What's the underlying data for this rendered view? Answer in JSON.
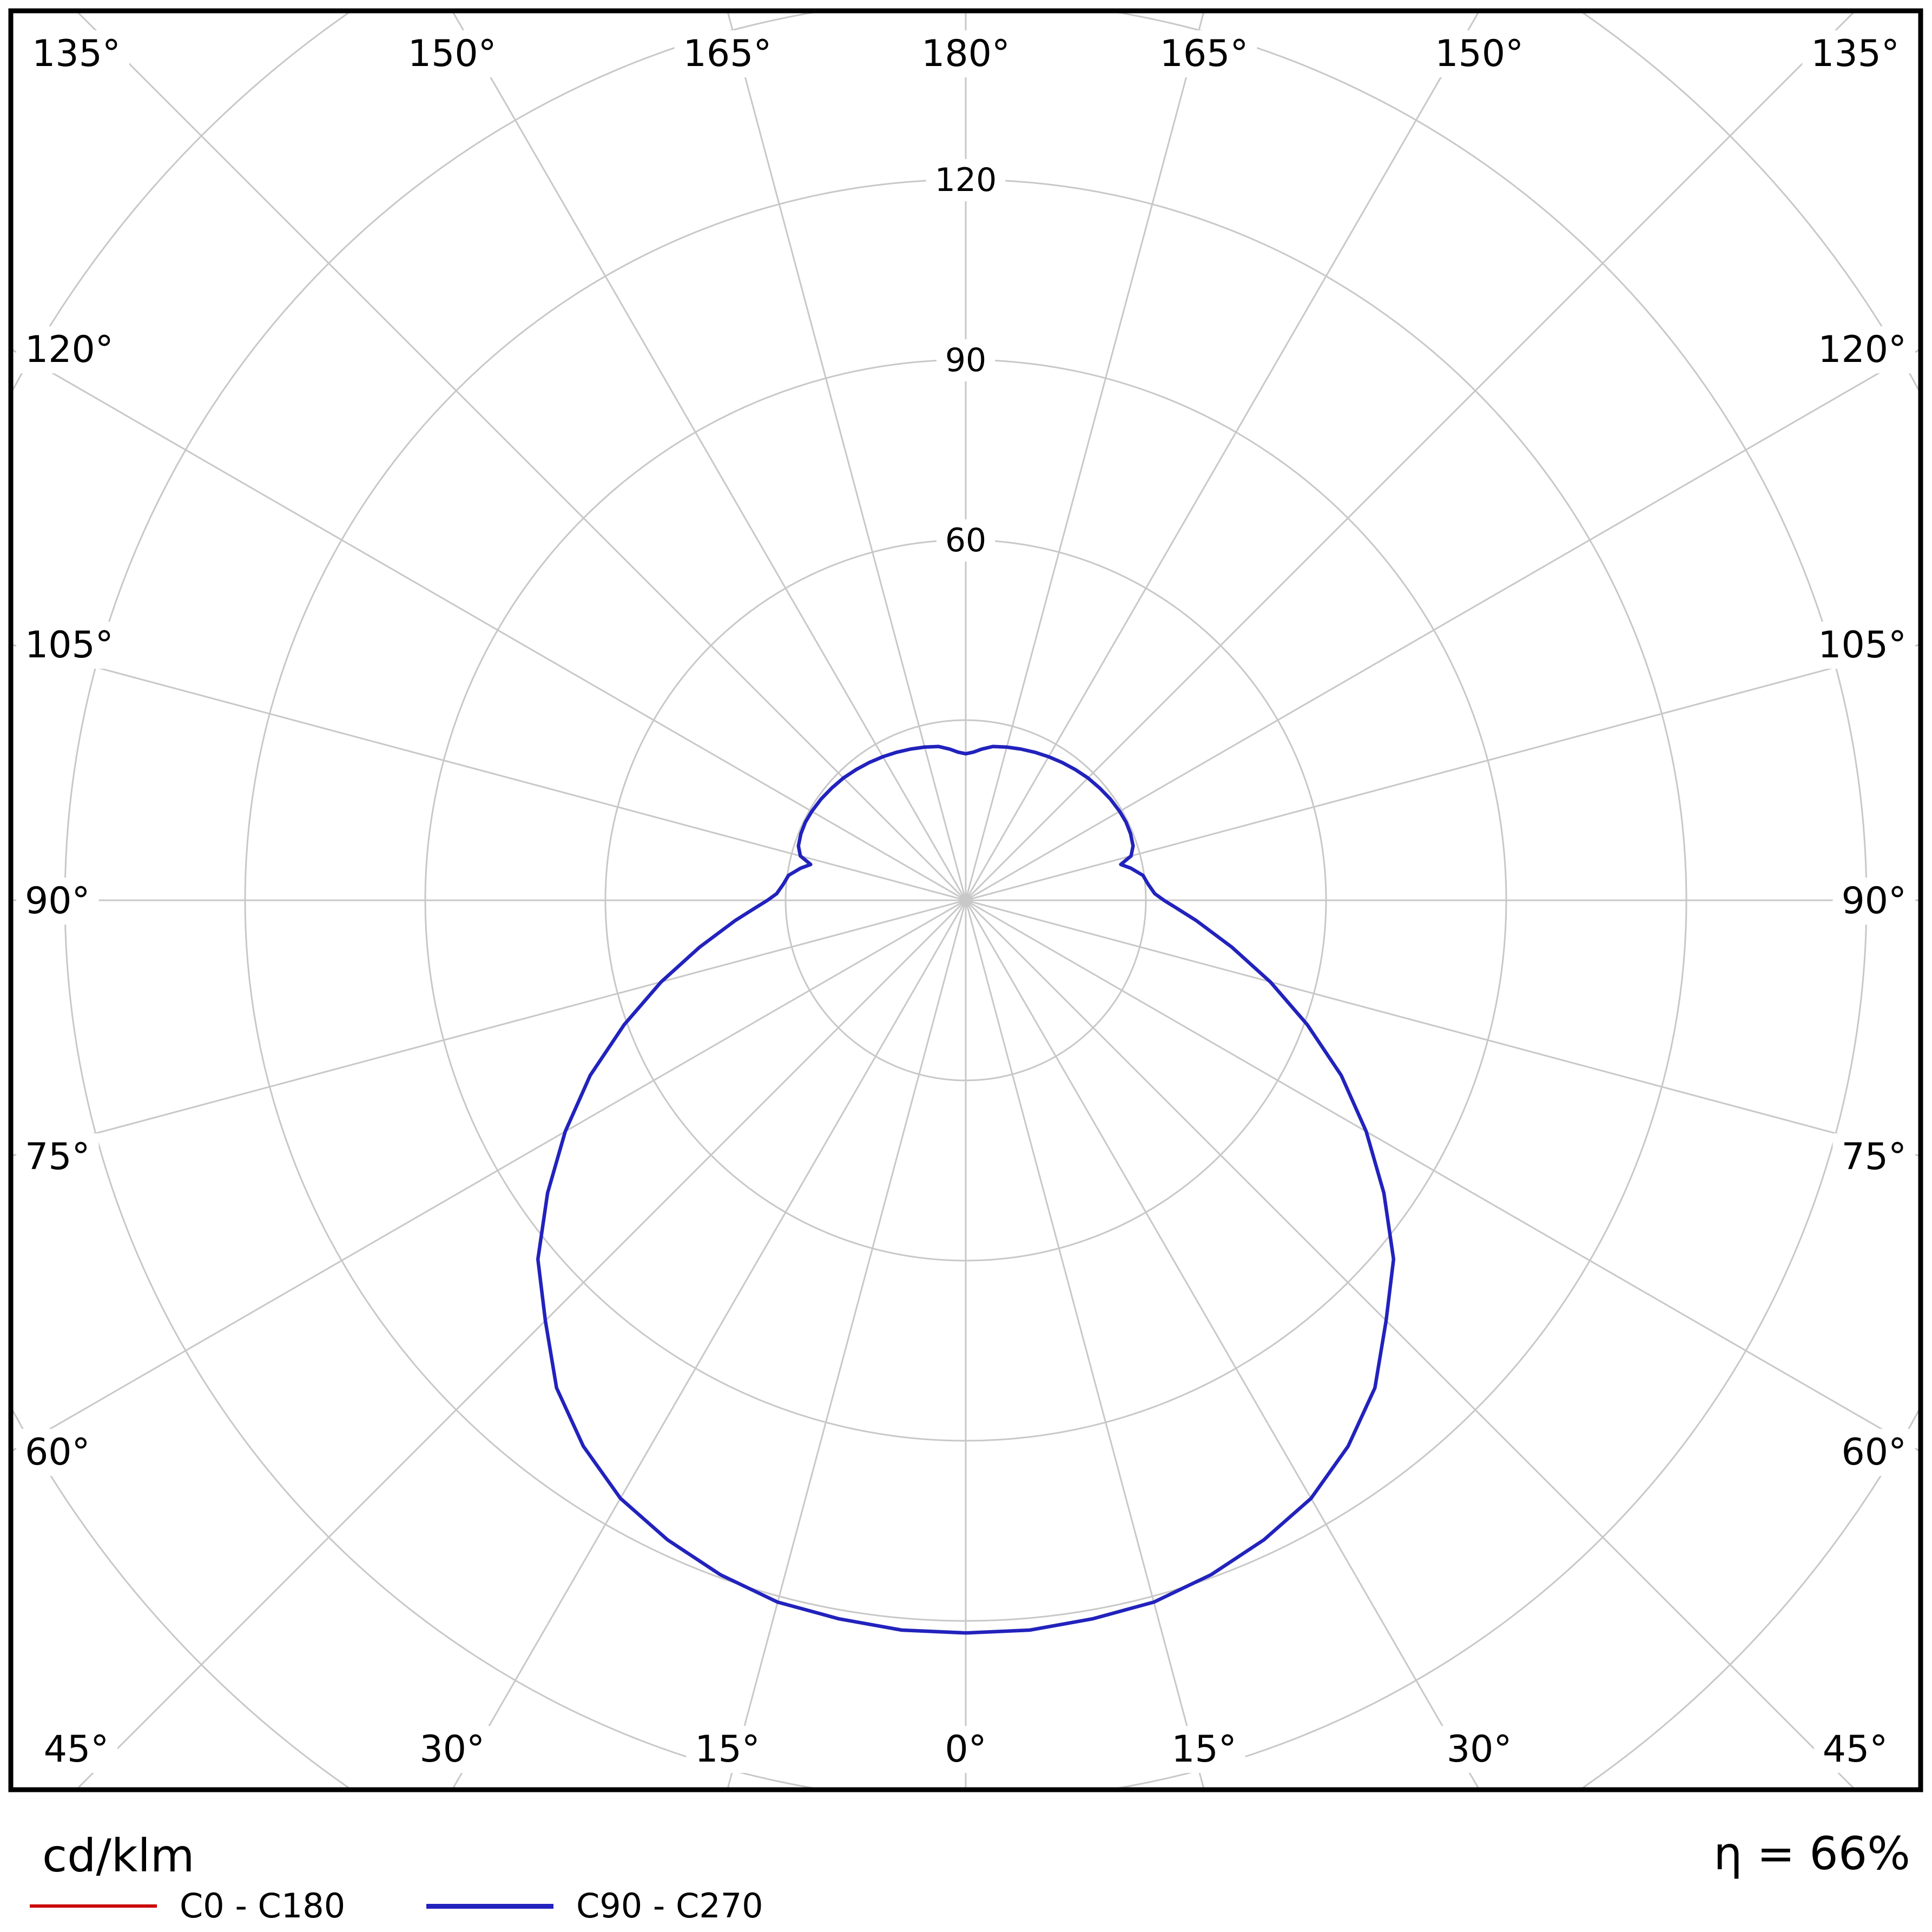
{
  "chart_data": {
    "type": "polar",
    "description": "Luminaire polar luminous intensity distribution diagram",
    "unit": "cd/klm",
    "efficiency": "η = 66%",
    "grid_color": "#c8c8c8",
    "frame_color": "#000000",
    "background_color": "#ffffff",
    "radial_unit_per_ring": 30,
    "radial_ticks": [
      30,
      60,
      90,
      120,
      150,
      180
    ],
    "radial_tick_labels": [
      {
        "value": 60,
        "label": "60"
      },
      {
        "value": 90,
        "label": "90"
      },
      {
        "value": 120,
        "label": "120"
      }
    ],
    "angle_ticks": [
      {
        "deg": 0,
        "label": "0°"
      },
      {
        "deg": 15,
        "label": "15°"
      },
      {
        "deg": 30,
        "label": "30°"
      },
      {
        "deg": 45,
        "label": "45°"
      },
      {
        "deg": 60,
        "label": "60°"
      },
      {
        "deg": 75,
        "label": "75°"
      },
      {
        "deg": 90,
        "label": "90°"
      },
      {
        "deg": 105,
        "label": "105°"
      },
      {
        "deg": 120,
        "label": "120°"
      },
      {
        "deg": 135,
        "label": "135°"
      },
      {
        "deg": 150,
        "label": "150°"
      },
      {
        "deg": 165,
        "label": "165°"
      },
      {
        "deg": 180,
        "label": "180°"
      }
    ],
    "legend_position": "bottom-left",
    "symmetric": true,
    "series": [
      {
        "name": "C0 - C180",
        "color": "#cc0000",
        "plane": "C0-C180",
        "gamma_deg": [
          0,
          5,
          10,
          15,
          20,
          25,
          30,
          35,
          40,
          45,
          50,
          55,
          60,
          65,
          70,
          75,
          80,
          85,
          88,
          90,
          92,
          95,
          98,
          101,
          103,
          105,
          108,
          112,
          116,
          120,
          125,
          130,
          135,
          140,
          145,
          150,
          155,
          160,
          165,
          170,
          174,
          177,
          180
        ],
        "values_cd_per_klm": [
          122,
          122,
          121.5,
          121,
          119.5,
          117.5,
          115,
          111,
          106,
          99,
          93,
          85,
          77,
          69,
          60.5,
          52.5,
          45,
          38.5,
          35,
          33,
          31.5,
          30.5,
          29.8,
          28,
          26.5,
          28.5,
          29.3,
          29.6,
          29.7,
          29.6,
          29.4,
          29.1,
          28.8,
          28.4,
          28,
          27.6,
          27.2,
          26.8,
          26.4,
          26,
          25.3,
          24.7,
          24.4
        ]
      },
      {
        "name": "C90 - C270",
        "color": "#2222bd",
        "plane": "C90-C270",
        "gamma_deg": [
          0,
          5,
          10,
          15,
          20,
          25,
          30,
          35,
          40,
          45,
          50,
          55,
          60,
          65,
          70,
          75,
          80,
          85,
          88,
          90,
          92,
          95,
          98,
          101,
          103,
          105,
          108,
          112,
          116,
          120,
          125,
          130,
          135,
          140,
          145,
          150,
          155,
          160,
          165,
          170,
          174,
          177,
          180
        ],
        "values_cd_per_klm": [
          122,
          122,
          121.5,
          121,
          119.5,
          117.5,
          115,
          111,
          106,
          99,
          93,
          85,
          77,
          69,
          60.5,
          52.5,
          45,
          38.5,
          35,
          33,
          31.5,
          30.5,
          29.8,
          28,
          26.5,
          28.5,
          29.3,
          29.6,
          29.7,
          29.6,
          29.4,
          29.1,
          28.8,
          28.4,
          28,
          27.6,
          27.2,
          26.8,
          26.4,
          26,
          25.3,
          24.7,
          24.4
        ]
      }
    ]
  }
}
